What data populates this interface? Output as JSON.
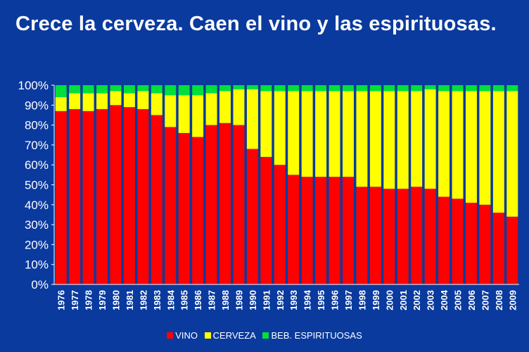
{
  "colors": {
    "background": "#0a3a9e",
    "vino": "#ff0000",
    "cerveza": "#ffff00",
    "espirituosas": "#00e03a",
    "text": "#ffffff"
  },
  "chart_data": {
    "type": "bar",
    "stacked": true,
    "title": "Crece la cerveza. Caen el vino y las espirituosas.",
    "categories": [
      "1976",
      "1977",
      "1978",
      "1979",
      "1980",
      "1981",
      "1982",
      "1983",
      "1984",
      "1985",
      "1986",
      "1987",
      "1988",
      "1989",
      "1990",
      "1991",
      "1992",
      "1993",
      "1994",
      "1995",
      "1996",
      "1997",
      "1998",
      "1999",
      "2000",
      "2001",
      "2002",
      "2003",
      "2004",
      "2005",
      "2006",
      "2007",
      "2008",
      "2009"
    ],
    "series": [
      {
        "name": "VINO",
        "values": [
          87,
          88,
          87,
          88,
          90,
          89,
          88,
          85,
          79,
          76,
          74,
          80,
          81,
          80,
          68,
          64,
          60,
          55,
          54,
          54,
          54,
          54,
          49,
          49,
          48,
          48,
          49,
          48,
          44,
          43,
          41,
          40,
          36,
          34
        ]
      },
      {
        "name": "CERVEZA",
        "values": [
          7,
          8,
          9,
          8,
          7,
          7,
          9,
          11,
          16,
          19,
          21,
          16,
          16,
          18,
          30,
          33,
          37,
          42,
          43,
          43,
          43,
          43,
          48,
          48,
          49,
          49,
          48,
          50,
          53,
          54,
          56,
          57,
          61,
          63
        ]
      },
      {
        "name": "BEB. ESPIRITUOSAS",
        "values": [
          6,
          4,
          4,
          4,
          3,
          4,
          3,
          4,
          5,
          5,
          5,
          4,
          3,
          2,
          2,
          3,
          3,
          3,
          3,
          3,
          3,
          3,
          3,
          3,
          3,
          3,
          3,
          2,
          3,
          3,
          3,
          3,
          3,
          3
        ]
      }
    ],
    "ylim": [
      0,
      100
    ],
    "yticks": [
      "0%",
      "10%",
      "20%",
      "30%",
      "40%",
      "50%",
      "60%",
      "70%",
      "80%",
      "90%",
      "100%"
    ],
    "legend_position": "bottom",
    "grid": false
  }
}
